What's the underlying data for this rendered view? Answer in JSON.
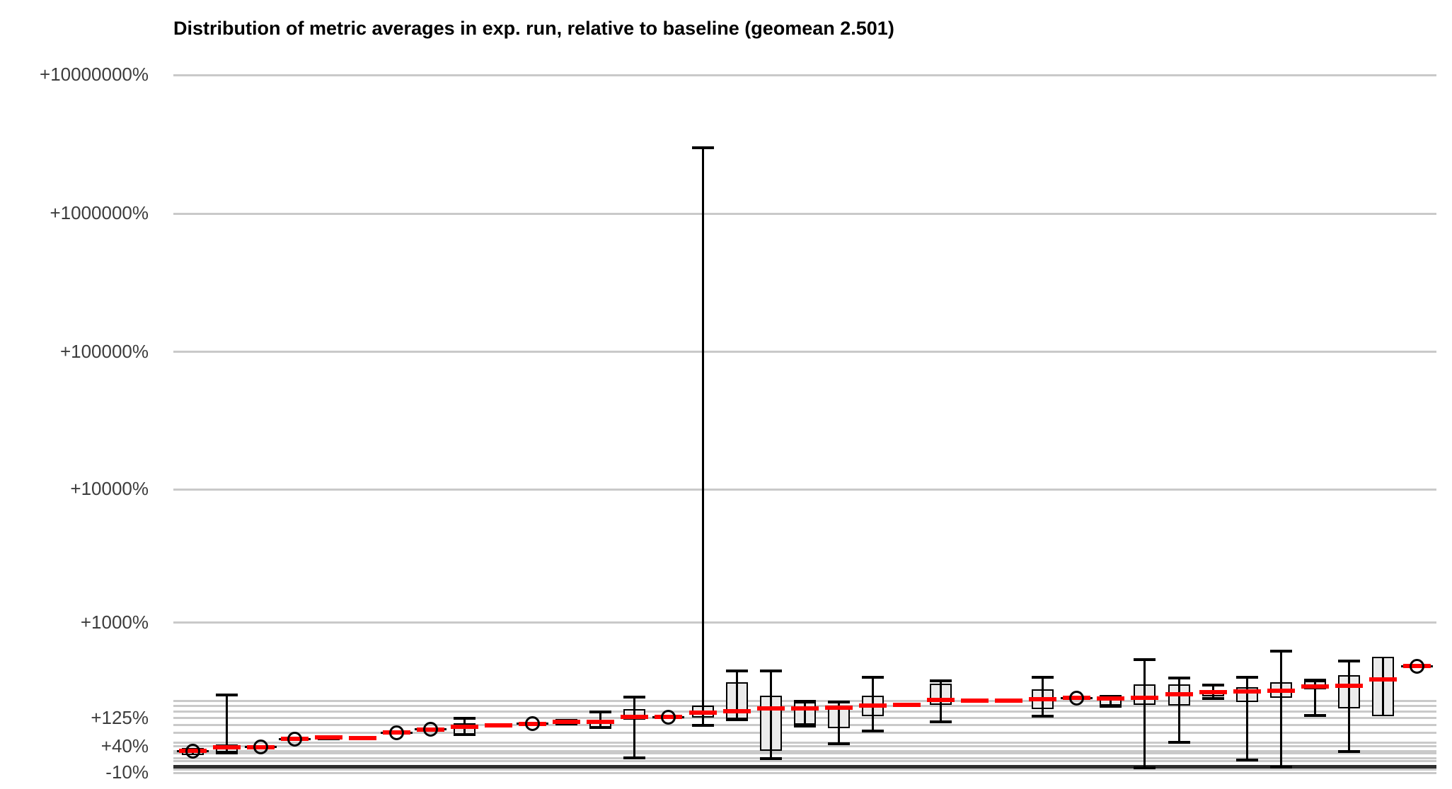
{
  "title": "Distribution of metric averages in exp. run, relative to baseline (geomean 2.501)",
  "colors": {
    "median": "#ff0000",
    "gridline": "#c9c9c9",
    "baseline": "#2f2f2f",
    "box_fill": "#ebebeb",
    "box_border": "#000000",
    "tick_label": "#3d3d3d",
    "title": "#000000",
    "background": "#ffffff"
  },
  "chart_data": {
    "type": "boxplot",
    "title": "Distribution of metric averages in exp. run, relative to baseline (geomean 2.501)",
    "subtitle": "",
    "xlabel": "",
    "ylabel": "",
    "y_scale": "log10 of ratio (1 + percent/100)",
    "legend": "none",
    "grid": "horizontal only",
    "baseline_pct": 0,
    "tick_labels": [
      {
        "label": "+10000000%",
        "pct": 10000000
      },
      {
        "label": "+1000000%",
        "pct": 1000000
      },
      {
        "label": "+100000%",
        "pct": 100000
      },
      {
        "label": "+10000%",
        "pct": 10000
      },
      {
        "label": "+1000%",
        "pct": 1000
      },
      {
        "label": "+125%",
        "pct": 125
      },
      {
        "label": "+40%",
        "pct": 40
      },
      {
        "label": "-10%",
        "pct": -10
      }
    ],
    "major_gridlines_pct": [
      10000000,
      1000000,
      100000,
      10000,
      1000
    ],
    "fine_gridlines_pct": [
      -10,
      -5,
      0,
      10,
      15,
      25,
      30,
      40,
      50,
      75,
      100,
      125,
      150,
      175,
      200
    ],
    "series": [
      {
        "type": "dot",
        "median": 30,
        "q1": 22,
        "q3": 37,
        "lo": null,
        "hi": null,
        "circle": true
      },
      {
        "type": "box",
        "median": 38,
        "q1": 28,
        "q3": 45,
        "lo": 26,
        "hi": 230,
        "circle": false
      },
      {
        "type": "dot",
        "median": 39,
        "q1": 34,
        "q3": 42,
        "lo": null,
        "hi": null,
        "circle": true
      },
      {
        "type": "dot",
        "median": 59,
        "q1": null,
        "q3": null,
        "lo": null,
        "hi": null,
        "circle": true
      },
      {
        "type": "box",
        "median": 63,
        "q1": 55,
        "q3": 67,
        "lo": null,
        "hi": null,
        "circle": false
      },
      {
        "type": "box",
        "median": 61,
        "q1": 55,
        "q3": 65,
        "lo": null,
        "hi": null,
        "circle": false
      },
      {
        "type": "dot",
        "median": 76,
        "q1": null,
        "q3": null,
        "lo": null,
        "hi": null,
        "circle": true
      },
      {
        "type": "dot",
        "median": 86,
        "q1": null,
        "q3": null,
        "lo": null,
        "hi": null,
        "circle": true
      },
      {
        "type": "box",
        "median": 94,
        "q1": 71,
        "q3": 106,
        "lo": 70,
        "hi": 124,
        "circle": false
      },
      {
        "type": "box",
        "median": 99,
        "q1": 95,
        "q3": 104,
        "lo": null,
        "hi": null,
        "circle": false
      },
      {
        "type": "dot",
        "median": 104,
        "q1": null,
        "q3": null,
        "lo": null,
        "hi": null,
        "circle": true
      },
      {
        "type": "box",
        "median": 112,
        "q1": 100,
        "q3": 121,
        "lo": null,
        "hi": null,
        "circle": false
      },
      {
        "type": "box",
        "median": 112,
        "q1": 93,
        "q3": 116,
        "lo": 93,
        "hi": 149,
        "circle": false
      },
      {
        "type": "box",
        "median": 129,
        "q1": 119,
        "q3": 161,
        "lo": 16,
        "hi": 219,
        "circle": false
      },
      {
        "type": "dot",
        "median": 129,
        "q1": null,
        "q3": null,
        "lo": null,
        "hi": null,
        "circle": true
      },
      {
        "type": "box",
        "median": 146,
        "q1": 127,
        "q3": 177,
        "lo": 99,
        "hi": 3000000,
        "circle": false
      },
      {
        "type": "box",
        "median": 152,
        "q1": 122,
        "q3": 309,
        "lo": 119,
        "hi": 392,
        "circle": false
      },
      {
        "type": "box",
        "median": 164,
        "q1": 30,
        "q3": 227,
        "lo": 14,
        "hi": 390,
        "circle": false
      },
      {
        "type": "box",
        "median": 164,
        "q1": 101,
        "q3": 194,
        "lo": 97,
        "hi": 197,
        "circle": false
      },
      {
        "type": "box",
        "median": 167,
        "q1": 90,
        "q3": 177,
        "lo": 47,
        "hi": 194,
        "circle": false
      },
      {
        "type": "box",
        "median": 177,
        "q1": 131,
        "q3": 227,
        "lo": 81,
        "hi": 345,
        "circle": false
      },
      {
        "type": "box",
        "median": 180,
        "q1": 176,
        "q3": 184,
        "lo": null,
        "hi": null,
        "circle": false
      },
      {
        "type": "box",
        "median": 204,
        "q1": 181,
        "q3": 298,
        "lo": 111,
        "hi": 318,
        "circle": false
      },
      {
        "type": "box",
        "median": 202,
        "q1": 198,
        "q3": 206,
        "lo": null,
        "hi": null,
        "circle": false
      },
      {
        "type": "box",
        "median": 199,
        "q1": 194,
        "q3": 204,
        "lo": null,
        "hi": null,
        "circle": false
      },
      {
        "type": "box",
        "median": 207,
        "q1": 161,
        "q3": 263,
        "lo": 132,
        "hi": 345,
        "circle": false
      },
      {
        "type": "dot",
        "median": 214,
        "q1": null,
        "q3": null,
        "lo": null,
        "hi": null,
        "circle": true
      },
      {
        "type": "box",
        "median": 211,
        "q1": 177,
        "q3": 219,
        "lo": 172,
        "hi": 224,
        "circle": false
      },
      {
        "type": "box",
        "median": 214,
        "q1": 181,
        "q3": 294,
        "lo": -2,
        "hi": 495,
        "circle": false
      },
      {
        "type": "box",
        "median": 235,
        "q1": 177,
        "q3": 294,
        "lo": 50,
        "hi": 337,
        "circle": false
      },
      {
        "type": "box",
        "median": 248,
        "q1": 223,
        "q3": 259,
        "lo": 210,
        "hi": 289,
        "circle": false
      },
      {
        "type": "box",
        "median": 252,
        "q1": 193,
        "q3": 277,
        "lo": 12,
        "hi": 341,
        "circle": false
      },
      {
        "type": "box",
        "median": 256,
        "q1": 215,
        "q3": 309,
        "lo": 0,
        "hi": 586,
        "circle": false
      },
      {
        "type": "box",
        "median": 281,
        "q1": 263,
        "q3": 318,
        "lo": 134,
        "hi": 322,
        "circle": false
      },
      {
        "type": "box",
        "median": 285,
        "q1": 164,
        "q3": 360,
        "lo": 29,
        "hi": 481,
        "circle": false
      },
      {
        "type": "box",
        "median": 327,
        "q1": 131,
        "q3": 525,
        "lo": null,
        "hi": null,
        "circle": false
      },
      {
        "type": "dot",
        "median": 434,
        "q1": null,
        "q3": null,
        "lo": null,
        "hi": null,
        "circle": true
      }
    ]
  }
}
